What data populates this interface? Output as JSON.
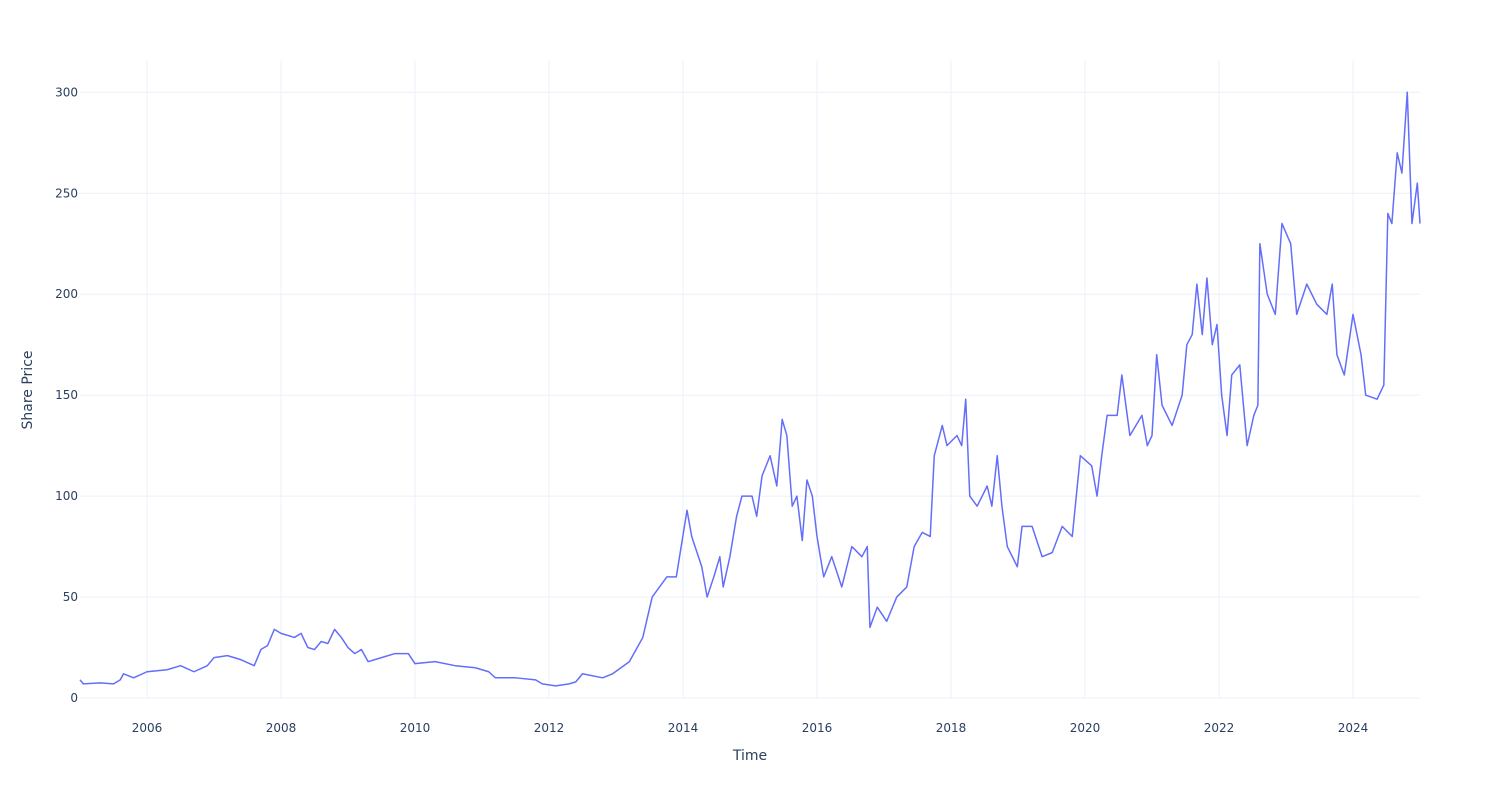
{
  "chart_data": {
    "type": "line",
    "x_label": "Time",
    "y_label": "Share Price",
    "xlim": [
      2005.0,
      2025.0
    ],
    "ylim": [
      0,
      316
    ],
    "xticks": [
      2006,
      2008,
      2010,
      2012,
      2014,
      2016,
      2018,
      2020,
      2022,
      2024
    ],
    "yticks": [
      0,
      50,
      100,
      150,
      200,
      250,
      300
    ],
    "grid": true,
    "series": [
      {
        "color": "#636efa",
        "x": [
          2005.0,
          2005.05,
          2005.3,
          2005.5,
          2005.6,
          2005.65,
          2005.8,
          2006.0,
          2006.3,
          2006.5,
          2006.7,
          2006.9,
          2007.0,
          2007.2,
          2007.4,
          2007.6,
          2007.7,
          2007.8,
          2007.9,
          2008.0,
          2008.2,
          2008.3,
          2008.4,
          2008.5,
          2008.6,
          2008.7,
          2008.8,
          2008.9,
          2009.0,
          2009.1,
          2009.2,
          2009.3,
          2009.5,
          2009.7,
          2009.9,
          2010.0,
          2010.3,
          2010.6,
          2010.9,
          2011.1,
          2011.2,
          2011.5,
          2011.8,
          2011.9,
          2012.1,
          2012.3,
          2012.4,
          2012.5,
          2012.8,
          2012.95,
          2013.2,
          2013.4,
          2013.54,
          2013.76,
          2013.9,
          2014.06,
          2014.13,
          2014.28,
          2014.36,
          2014.46,
          2014.55,
          2014.6,
          2014.7,
          2014.8,
          2014.88,
          2015.03,
          2015.1,
          2015.18,
          2015.3,
          2015.4,
          2015.48,
          2015.55,
          2015.63,
          2015.7,
          2015.78,
          2015.85,
          2015.93,
          2016.0,
          2016.1,
          2016.22,
          2016.37,
          2016.52,
          2016.67,
          2016.75,
          2016.79,
          2016.9,
          2017.04,
          2017.19,
          2017.34,
          2017.45,
          2017.57,
          2017.69,
          2017.75,
          2017.87,
          2017.94,
          2018.09,
          2018.16,
          2018.22,
          2018.28,
          2018.39,
          2018.54,
          2018.61,
          2018.69,
          2018.76,
          2018.84,
          2018.99,
          2019.06,
          2019.21,
          2019.36,
          2019.51,
          2019.66,
          2019.81,
          2019.93,
          2020.1,
          2020.18,
          2020.25,
          2020.33,
          2020.48,
          2020.55,
          2020.67,
          2020.85,
          2020.93,
          2021.0,
          2021.07,
          2021.15,
          2021.3,
          2021.45,
          2021.52,
          2021.6,
          2021.67,
          2021.75,
          2021.82,
          2021.9,
          2021.97,
          2022.04,
          2022.12,
          2022.19,
          2022.31,
          2022.42,
          2022.52,
          2022.58,
          2022.61,
          2022.72,
          2022.84,
          2022.94,
          2023.07,
          2023.16,
          2023.31,
          2023.46,
          2023.61,
          2023.69,
          2023.76,
          2023.87,
          2024.0,
          2024.12,
          2024.19,
          2024.36,
          2024.46,
          2024.52,
          2024.58,
          2024.66,
          2024.73,
          2024.81,
          2024.88,
          2024.96,
          2025.0
        ],
        "values": [
          9,
          7,
          7.5,
          7,
          9,
          12,
          10,
          13,
          14,
          16,
          13,
          16,
          20,
          21,
          19,
          16,
          24,
          26,
          34,
          32,
          30,
          32,
          25,
          24,
          28,
          27,
          34,
          30,
          25,
          22,
          24,
          18,
          20,
          22,
          22,
          17,
          18,
          16,
          15,
          13,
          10,
          10,
          9,
          7,
          6,
          7,
          8,
          12,
          10,
          12,
          18,
          30,
          50,
          60,
          60,
          93,
          80,
          65,
          50,
          60,
          70,
          55,
          70,
          90,
          100,
          100,
          90,
          110,
          120,
          105,
          138,
          130,
          95,
          100,
          78,
          108,
          100,
          80,
          60,
          70,
          55,
          75,
          70,
          75,
          35,
          45,
          38,
          50,
          55,
          75,
          82,
          80,
          120,
          135,
          125,
          130,
          125,
          148,
          100,
          95,
          105,
          95,
          120,
          95,
          75,
          65,
          85,
          85,
          70,
          72,
          85,
          80,
          120,
          115,
          100,
          120,
          140,
          140,
          160,
          130,
          140,
          125,
          130,
          170,
          145,
          135,
          150,
          175,
          180,
          205,
          180,
          208,
          175,
          185,
          150,
          130,
          160,
          165,
          125,
          140,
          145,
          225,
          200,
          190,
          235,
          225,
          190,
          205,
          195,
          190,
          205,
          170,
          160,
          190,
          170,
          150,
          148,
          155,
          240,
          235,
          270,
          260,
          300,
          235,
          255,
          235
        ]
      }
    ]
  }
}
